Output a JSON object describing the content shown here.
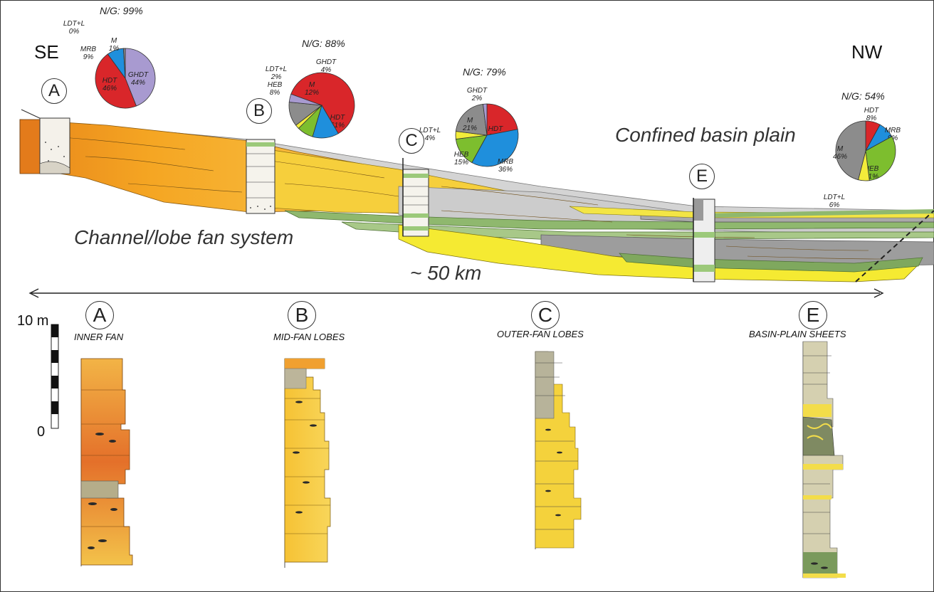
{
  "direction": {
    "left": "SE",
    "right": "NW"
  },
  "labels": {
    "channel_lobe": "Channel/lobe fan system",
    "confined_basin": "Confined basin plain",
    "distance": "~ 50 km",
    "scale_top": "10 m",
    "scale_bottom": "0"
  },
  "wells": [
    "A",
    "B",
    "C",
    "E"
  ],
  "logs": [
    {
      "letter": "A",
      "title": "INNER FAN"
    },
    {
      "letter": "B",
      "title": "MID-FAN LOBES"
    },
    {
      "letter": "C",
      "title": "OUTER-FAN LOBES"
    },
    {
      "letter": "E",
      "title": "BASIN-PLAIN  SHEETS"
    }
  ],
  "colors": {
    "HDT": "#d9262a",
    "GHDT": "#a89ad0",
    "MRB": "#1f8fdc",
    "HEB": "#7dbe2e",
    "LDT_L": "#f2ec3a",
    "M": "#8c8c8c",
    "orange": "#f3a21e",
    "yellow_fan": "#f7d22e",
    "grey_mud": "#cfcfcf",
    "green": "#8bb26a"
  },
  "chart_data": [
    {
      "type": "pie",
      "title": "N/G: 99%",
      "slices": [
        {
          "name": "GHDT",
          "value": 44,
          "label": "GHDT\n44%"
        },
        {
          "name": "HDT",
          "value": 46,
          "label": "HDT\n46%"
        },
        {
          "name": "MRB",
          "value": 9,
          "label": "MRB\n9%"
        },
        {
          "name": "LDT+L",
          "value": 0,
          "label": "LDT+L\n0%"
        },
        {
          "name": "M",
          "value": 1,
          "label": "M\n1%"
        }
      ]
    },
    {
      "type": "pie",
      "title": "N/G: 88%",
      "slices": [
        {
          "name": "HDT",
          "value": 61,
          "label": "HDT\n61%"
        },
        {
          "name": "MRB",
          "value": 13,
          "label": "MRB\n13%"
        },
        {
          "name": "HEB",
          "value": 8,
          "label": "HEB\n8%"
        },
        {
          "name": "LDT+L",
          "value": 2,
          "label": "LDT+L\n2%"
        },
        {
          "name": "M",
          "value": 12,
          "label": "M\n12%"
        },
        {
          "name": "GHDT",
          "value": 4,
          "label": "GHDT\n4%"
        }
      ]
    },
    {
      "type": "pie",
      "title": "N/G: 79%",
      "slices": [
        {
          "name": "HDT",
          "value": 22,
          "label": "HDT\n22%"
        },
        {
          "name": "MRB",
          "value": 36,
          "label": "MRB\n36%"
        },
        {
          "name": "HEB",
          "value": 15,
          "label": "HEB\n15%"
        },
        {
          "name": "LDT+L",
          "value": 4,
          "label": "LDT+L\n4%"
        },
        {
          "name": "M",
          "value": 21,
          "label": "M\n21%"
        },
        {
          "name": "GHDT",
          "value": 2,
          "label": "GHDT\n2%"
        }
      ]
    },
    {
      "type": "pie",
      "title": "N/G: 54%",
      "slices": [
        {
          "name": "HDT",
          "value": 8,
          "label": "HDT\n8%"
        },
        {
          "name": "MRB",
          "value": 9,
          "label": "MRB\n9%"
        },
        {
          "name": "HEB",
          "value": 31,
          "label": "HEB\n31%"
        },
        {
          "name": "LDT+L",
          "value": 6,
          "label": "LDT+L\n6%"
        },
        {
          "name": "M",
          "value": 46,
          "label": "M\n46%"
        }
      ]
    }
  ]
}
